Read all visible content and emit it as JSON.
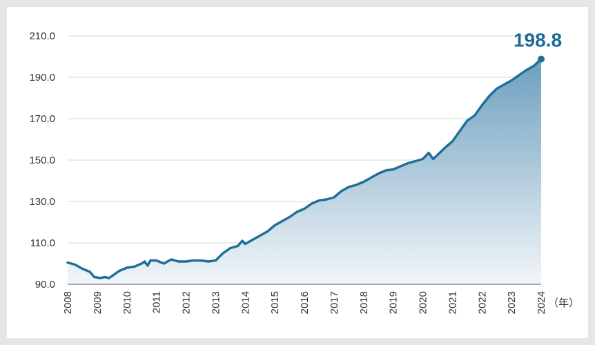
{
  "chart_data": {
    "type": "area",
    "title": "",
    "xlabel": "",
    "ylabel": "",
    "x_unit_label": "（年）",
    "peak_label": "198.8",
    "x_ticks": [
      "2008",
      "2009",
      "2010",
      "2011",
      "2012",
      "2013",
      "2014",
      "2015",
      "2016",
      "2017",
      "2018",
      "2019",
      "2020",
      "2021",
      "2022",
      "2023",
      "2024"
    ],
    "y_ticks": [
      "90.0",
      "110.0",
      "130.0",
      "150.0",
      "170.0",
      "190.0",
      "210.0"
    ],
    "xlim": [
      2008,
      2024
    ],
    "ylim": [
      90,
      210
    ],
    "grid": "horizontal",
    "line_color": "#1f6e97",
    "fill_top_color": "#6c9fbe",
    "fill_bottom_color": "#f2f6f9",
    "series": [
      {
        "x": [
          2008.0,
          2008.25,
          2008.5,
          2008.75,
          2008.9,
          2009.0,
          2009.1,
          2009.25,
          2009.4,
          2009.5,
          2009.6,
          2009.75,
          2010.0,
          2010.25,
          2010.5,
          2010.6,
          2010.7,
          2010.8,
          2011.0,
          2011.25,
          2011.5,
          2011.75,
          2012.0,
          2012.25,
          2012.5,
          2012.75,
          2013.0,
          2013.25,
          2013.5,
          2013.75,
          2013.9,
          2014.0,
          2014.25,
          2014.5,
          2014.75,
          2015.0,
          2015.25,
          2015.5,
          2015.75,
          2016.0,
          2016.25,
          2016.5,
          2016.75,
          2017.0,
          2017.25,
          2017.5,
          2017.75,
          2018.0,
          2018.25,
          2018.5,
          2018.75,
          2019.0,
          2019.25,
          2019.5,
          2019.75,
          2020.0,
          2020.2,
          2020.35,
          2020.5,
          2020.75,
          2021.0,
          2021.25,
          2021.5,
          2021.75,
          2022.0,
          2022.25,
          2022.5,
          2022.75,
          2023.0,
          2023.25,
          2023.5,
          2023.75,
          2024.0
        ],
        "y": [
          100.5,
          99.5,
          97.5,
          96.0,
          93.5,
          93.3,
          93.0,
          93.5,
          93.0,
          94.0,
          95.0,
          96.5,
          98.0,
          98.5,
          100.0,
          101.0,
          99.0,
          101.5,
          101.5,
          100.0,
          102.0,
          101.0,
          101.0,
          101.5,
          101.5,
          101.0,
          101.5,
          105.0,
          107.5,
          108.5,
          111.0,
          109.5,
          111.5,
          113.5,
          115.5,
          118.5,
          120.5,
          122.5,
          125.0,
          126.5,
          129.0,
          130.5,
          131.0,
          132.0,
          135.0,
          137.0,
          138.0,
          139.5,
          141.5,
          143.5,
          145.0,
          145.5,
          147.0,
          148.5,
          149.5,
          150.5,
          153.5,
          150.5,
          152.5,
          156.0,
          159.0,
          164.0,
          169.0,
          171.5,
          176.5,
          181.0,
          184.5,
          186.5,
          188.5,
          191.0,
          193.5,
          195.5,
          198.8
        ]
      }
    ]
  }
}
